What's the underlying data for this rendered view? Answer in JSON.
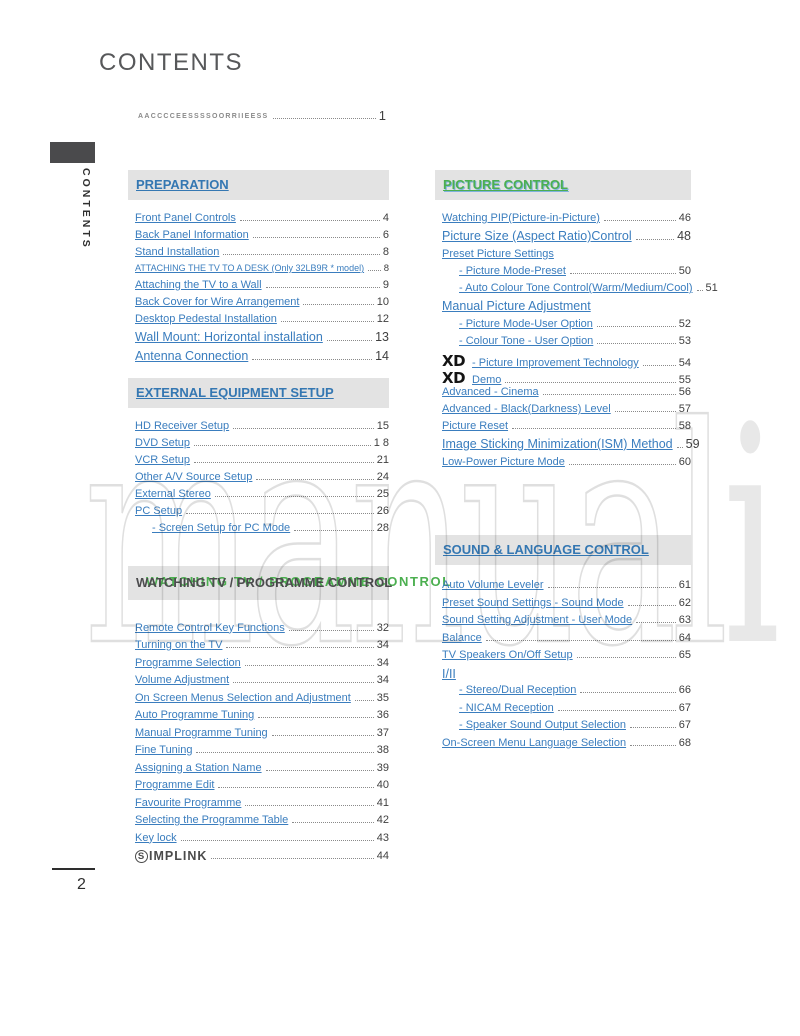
{
  "page": {
    "title": "CONTENTS",
    "sidebar_label": "CONTENTS",
    "page_number": "2",
    "watermark_outline": "manual",
    "watermark_filled": "i",
    "accessories_label": "AACCCCEESSSSOORRIIEESS",
    "accessories_page": "1"
  },
  "colors": {
    "link_blue": "#3a7dbe",
    "header_blue": "#3477b2",
    "header_green": "#4caf50",
    "band_gray": "#e3e3e3",
    "page_number_gray": "#3f3f3f"
  },
  "logos": {
    "xd": "XD",
    "simplink_s": "S",
    "simplink_rest": "IMPLINK"
  },
  "columns": {
    "left": [
      {
        "id": "preparation",
        "title": "PREPARATION",
        "style": "blue",
        "ghost": null,
        "entries": [
          {
            "label": "Front Panel Controls",
            "page": "4",
            "size": "normal"
          },
          {
            "label": "Back Panel Information",
            "page": "6",
            "size": "normal"
          },
          {
            "label": "Stand Installation",
            "page": "8",
            "size": "normal"
          },
          {
            "label": "ATTACHING THE TV TO A DESK (Only 32LB9R * model)",
            "page": "8",
            "size": "small"
          },
          {
            "label": "Attaching the TV to a Wall",
            "page": "9",
            "size": "normal"
          },
          {
            "label": "Back Cover for Wire Arrangement",
            "page": "10",
            "size": "normal"
          },
          {
            "label": "Desktop Pedestal Installation",
            "page": "12",
            "size": "normal"
          },
          {
            "label": "Wall Mount: Horizontal installation",
            "page": "13",
            "size": "large"
          },
          {
            "label": "Antenna Connection",
            "page": "14",
            "size": "large"
          }
        ]
      },
      {
        "id": "external",
        "title": "EXTERNAL EQUIPMENT SETUP",
        "style": "blue",
        "ghost": null,
        "entries": [
          {
            "label": "HD Receiver Setup",
            "page": "15",
            "size": "normal"
          },
          {
            "label": "DVD Setup",
            "page": "1 8",
            "size": "normal"
          },
          {
            "label": "VCR Setup",
            "page": "21",
            "size": "normal"
          },
          {
            "label": "Other A/V Source Setup",
            "page": "24",
            "size": "normal"
          },
          {
            "label": "External Stereo",
            "page": "25",
            "size": "normal"
          },
          {
            "label": "PC Setup",
            "page": "26",
            "size": "normal"
          },
          {
            "label": "- Screen Setup for PC Mode",
            "page": "28",
            "size": "normal",
            "indent": true
          }
        ]
      },
      {
        "id": "watching",
        "title": "WATCHING TV / PROGRAMME CONTROL",
        "style": "doubled",
        "ghost": "WATCHING TV / PROGRAMME CONTROL",
        "entries": [
          {
            "label": "Remote Control Key Functions",
            "page": "32",
            "size": "normal"
          },
          {
            "label": "Turning on the TV",
            "page": "34",
            "size": "normal"
          },
          {
            "label": "Programme Selection",
            "page": "34",
            "size": "normal"
          },
          {
            "label": "Volume Adjustment",
            "page": "34",
            "size": "normal"
          },
          {
            "label": "On Screen Menus Selection and Adjustment",
            "page": "35",
            "size": "normal"
          },
          {
            "label": "Auto Programme Tuning",
            "page": "36",
            "size": "normal"
          },
          {
            "label": "Manual Programme Tuning",
            "page": "37",
            "size": "normal"
          },
          {
            "label": "Fine Tuning",
            "page": "38",
            "size": "normal"
          },
          {
            "label": "Assigning a Station Name",
            "page": "39",
            "size": "normal"
          },
          {
            "label": "Programme Edit",
            "page": "40",
            "size": "normal"
          },
          {
            "label": "Favourite Programme",
            "page": "41",
            "size": "normal"
          },
          {
            "label": "Selecting the Programme Table",
            "page": "42",
            "size": "normal"
          },
          {
            "label": "Key lock",
            "page": "43",
            "size": "normal"
          },
          {
            "label": "",
            "page": "44",
            "size": "normal",
            "logo": "simplink"
          }
        ]
      }
    ],
    "right": [
      {
        "id": "picture",
        "title": "PICTURE CONTROL",
        "style": "green",
        "ghost": null,
        "entries": [
          {
            "label": "Watching PIP(Picture-in-Picture)",
            "page": "46",
            "size": "normal"
          },
          {
            "label": "Picture Size (Aspect Ratio)Control",
            "page": "48",
            "size": "large"
          },
          {
            "label": "Preset Picture Settings",
            "page": "",
            "size": "normal"
          },
          {
            "label": "- Picture Mode-Preset",
            "page": "50",
            "size": "normal",
            "indent": true
          },
          {
            "label": "- Auto Colour Tone Control(Warm/Medium/Cool)",
            "page": "51",
            "size": "normal",
            "indent": true
          },
          {
            "label": "Manual Picture Adjustment",
            "page": "",
            "size": "large"
          },
          {
            "label": "- Picture Mode-User Option",
            "page": "52",
            "size": "normal",
            "indent": true
          },
          {
            "label": "- Colour Tone - User Option",
            "page": "53",
            "size": "normal",
            "indent": true
          },
          {
            "label": "- Picture Improvement Technology",
            "page": "54",
            "size": "normal",
            "logo": "xd"
          },
          {
            "label": "Demo",
            "page": "55",
            "size": "normal",
            "logo": "xd"
          },
          {
            "label": "Advanced - Cinema",
            "page": "56",
            "size": "normal"
          },
          {
            "label": "Advanced - Black(Darkness) Level",
            "page": "57",
            "size": "normal"
          },
          {
            "label": "Picture Reset",
            "page": "58",
            "size": "normal"
          },
          {
            "label": "Image Sticking Minimization(ISM) Method",
            "page": "59",
            "size": "large"
          },
          {
            "label": "Low-Power Picture Mode",
            "page": "60",
            "size": "normal"
          }
        ]
      },
      {
        "id": "sound",
        "title": "SOUND & LANGUAGE CONTROL",
        "style": "blue",
        "ghost": null,
        "entries": [
          {
            "label": "Auto Volume Leveler",
            "page": "61",
            "size": "normal"
          },
          {
            "label": "Preset Sound Settings - Sound Mode",
            "page": "62",
            "size": "normal"
          },
          {
            "label": "Sound Setting Adjustment - User Mode",
            "page": "63",
            "size": "normal"
          },
          {
            "label": "Balance",
            "page": "64",
            "size": "normal"
          },
          {
            "label": "TV Speakers On/Off Setup",
            "page": "65",
            "size": "normal"
          },
          {
            "label": "I/II",
            "page": "",
            "size": "large"
          },
          {
            "label": "- Stereo/Dual Reception",
            "page": "66",
            "size": "normal",
            "indent": true
          },
          {
            "label": "- NICAM Reception",
            "page": "67",
            "size": "normal",
            "indent": true
          },
          {
            "label": "- Speaker Sound Output Selection",
            "page": "67",
            "size": "normal",
            "indent": true
          },
          {
            "label": "On-Screen Menu Language Selection",
            "page": "68",
            "size": "normal"
          }
        ]
      }
    ]
  }
}
